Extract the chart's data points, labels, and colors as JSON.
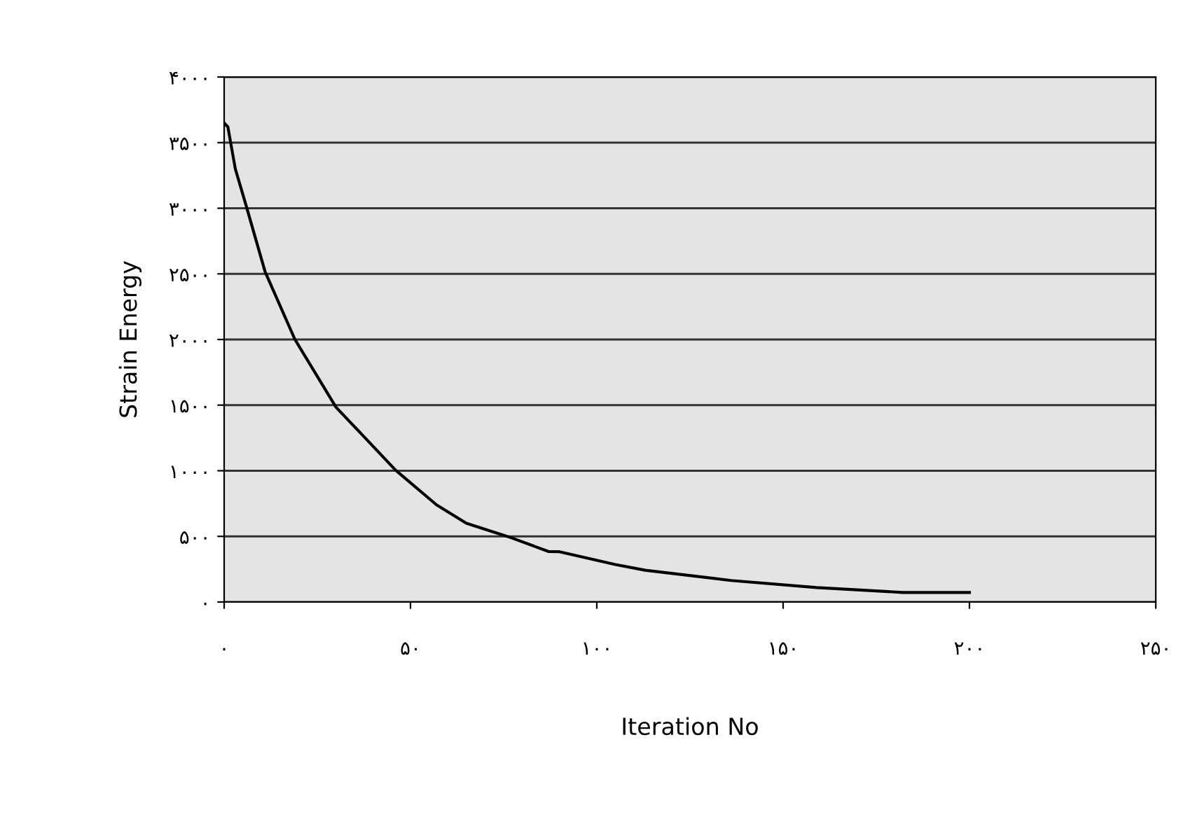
{
  "chart_data": {
    "type": "line",
    "xlabel": "Iteration No",
    "ylabel": "Strain Energy",
    "series": [
      {
        "color": "#000000",
        "x": [
          0,
          1,
          3,
          6,
          11,
          19,
          30,
          46,
          57,
          65,
          77,
          87,
          90,
          105,
          113,
          136,
          159,
          182,
          200
        ],
        "values": [
          3650,
          3620,
          3300,
          3010,
          2515,
          2000,
          1485,
          1005,
          740,
          600,
          490,
          385,
          383,
          285,
          242,
          164,
          110,
          73,
          73
        ]
      }
    ],
    "xlim": [
      0,
      250
    ],
    "ylim": [
      0,
      4000
    ],
    "xticks": [
      {
        "value": 0,
        "label": "۰"
      },
      {
        "value": 50,
        "label": "۵۰"
      },
      {
        "value": 100,
        "label": "۱۰۰"
      },
      {
        "value": 150,
        "label": "۱۵۰"
      },
      {
        "value": 200,
        "label": "۲۰۰"
      },
      {
        "value": 250,
        "label": "۲۵۰"
      }
    ],
    "yticks": [
      {
        "value": 0,
        "label": "۰"
      },
      {
        "value": 500,
        "label": "۵۰۰"
      },
      {
        "value": 1000,
        "label": "۱۰۰۰"
      },
      {
        "value": 1500,
        "label": "۱۵۰۰"
      },
      {
        "value": 2000,
        "label": "۲۰۰۰"
      },
      {
        "value": 2500,
        "label": "۲۵۰۰"
      },
      {
        "value": 3000,
        "label": "۳۰۰۰"
      },
      {
        "value": 3500,
        "label": "۳۵۰۰"
      },
      {
        "value": 4000,
        "label": "۴۰۰۰"
      }
    ],
    "grid": "y",
    "legend": false,
    "marker": "none",
    "line_style": "solid"
  }
}
